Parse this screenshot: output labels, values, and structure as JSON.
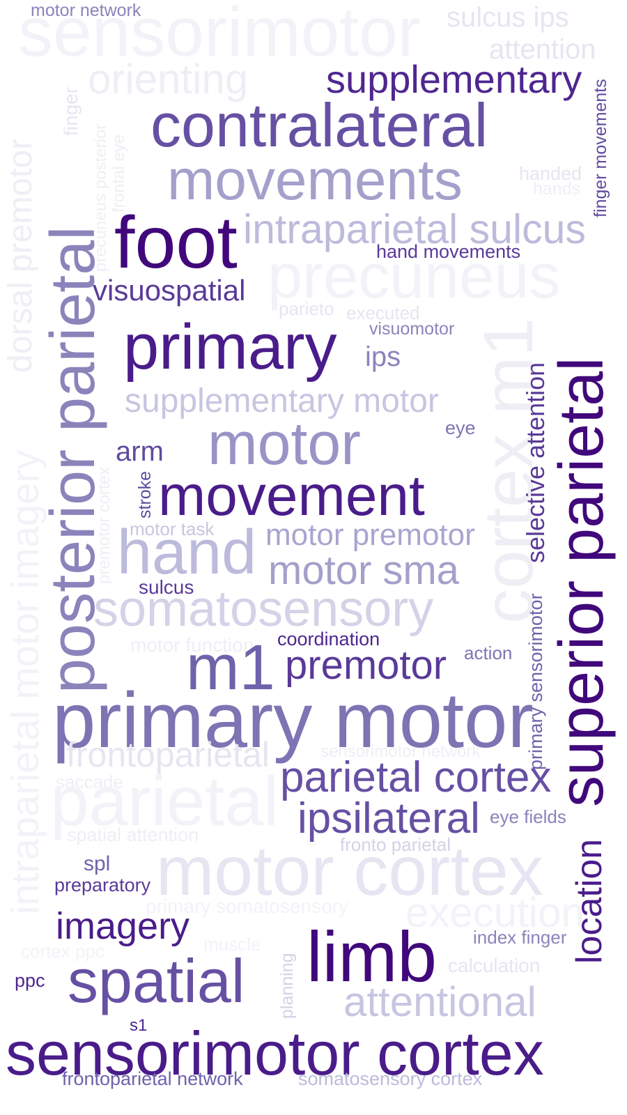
{
  "words": [
    {
      "text": "motor network",
      "color": "#8a84bb"
    },
    {
      "text": "sensorimotor",
      "color": "#f3f2f8"
    },
    {
      "text": "sulcus ips",
      "color": "#e6e5f1"
    },
    {
      "text": "attention",
      "color": "#e6e5f1"
    },
    {
      "text": "orienting",
      "color": "#efeef5"
    },
    {
      "text": "supplementary",
      "color": "#4f2690"
    },
    {
      "text": "contralateral",
      "color": "#6650a3"
    },
    {
      "text": "movements",
      "color": "#a3a0cb"
    },
    {
      "text": "handed",
      "color": "#e6e5f1"
    },
    {
      "text": "hands",
      "color": "#efeef5"
    },
    {
      "text": "foot",
      "color": "#41087b"
    },
    {
      "text": "intraparietal sulcus",
      "color": "#bcbbdb"
    },
    {
      "text": "hand movements",
      "color": "#5a3a98"
    },
    {
      "text": "precuneus",
      "color": "#f3f2f8"
    },
    {
      "text": "visuospatial",
      "color": "#5a3a98"
    },
    {
      "text": "parieto",
      "color": "#e6e5f1"
    },
    {
      "text": "executed",
      "color": "#e6e5f1"
    },
    {
      "text": "visuomotor",
      "color": "#8a84bb"
    },
    {
      "text": "primary",
      "color": "#4a1c8a"
    },
    {
      "text": "ips",
      "color": "#8a84bb"
    },
    {
      "text": "supplementary motor",
      "color": "#c7c6e1"
    },
    {
      "text": "eye",
      "color": "#7d74b3"
    },
    {
      "text": "arm",
      "color": "#5f4a9f"
    },
    {
      "text": "motor",
      "color": "#9994c6"
    },
    {
      "text": "movement",
      "color": "#4a1c8a"
    },
    {
      "text": "motor task",
      "color": "#c7c6e1"
    },
    {
      "text": "hand",
      "color": "#bcbbdb"
    },
    {
      "text": "motor premotor",
      "color": "#a8a5cf"
    },
    {
      "text": "motor sma",
      "color": "#a3a0cb"
    },
    {
      "text": "sulcus",
      "color": "#5a3a98"
    },
    {
      "text": "somatosensory",
      "color": "#d3d2e7"
    },
    {
      "text": "motor function",
      "color": "#efeef5"
    },
    {
      "text": "coordination",
      "color": "#4f2690"
    },
    {
      "text": "action",
      "color": "#7d74b3"
    },
    {
      "text": "m1",
      "color": "#6f62ab"
    },
    {
      "text": "premotor",
      "color": "#5a3a98"
    },
    {
      "text": "primary motor",
      "color": "#7d74b3"
    },
    {
      "text": "frontoparietal",
      "color": "#e6e5f1"
    },
    {
      "text": "sensorimotor network",
      "color": "#efeef5"
    },
    {
      "text": "saccade",
      "color": "#efeef5"
    },
    {
      "text": "parietal",
      "color": "#f3f2f8"
    },
    {
      "text": "parietal cortex",
      "color": "#6650a3"
    },
    {
      "text": "ipsilateral",
      "color": "#6650a3"
    },
    {
      "text": "eye fields",
      "color": "#8a84bb"
    },
    {
      "text": "spatial attention",
      "color": "#efeef5"
    },
    {
      "text": "fronto parietal",
      "color": "#d3d2e7"
    },
    {
      "text": "spl",
      "color": "#6f62ab"
    },
    {
      "text": "preparatory",
      "color": "#5a3a98"
    },
    {
      "text": "motor cortex",
      "color": "#e6e5f1"
    },
    {
      "text": "primary somatosensory",
      "color": "#f3f2f8"
    },
    {
      "text": "execution",
      "color": "#f3f2f8"
    },
    {
      "text": "imagery",
      "color": "#4a1c8a"
    },
    {
      "text": "index finger",
      "color": "#8a84bb"
    },
    {
      "text": "limb",
      "color": "#41087b"
    },
    {
      "text": "cortex ppc",
      "color": "#f3f2f8"
    },
    {
      "text": "muscle",
      "color": "#f3f2f8"
    },
    {
      "text": "calculation",
      "color": "#e6e5f1"
    },
    {
      "text": "ppc",
      "color": "#4f2690"
    },
    {
      "text": "spatial",
      "color": "#6650a3"
    },
    {
      "text": "attentional",
      "color": "#c7c6e1"
    },
    {
      "text": "s1",
      "color": "#4f2690"
    },
    {
      "text": "sensorimotor cortex",
      "color": "#4a1c8a"
    },
    {
      "text": "frontoparietal network",
      "color": "#6f62ab"
    },
    {
      "text": "somatosensory cortex",
      "color": "#bcbbdb"
    }
  ],
  "vertical_words": [
    {
      "text": "dorsal premotor",
      "color": "#efeef5"
    },
    {
      "text": "finger",
      "color": "#e6e5f1"
    },
    {
      "text": "precuneus posterior",
      "color": "#efeef5"
    },
    {
      "text": "frontal eye",
      "color": "#efeef5"
    },
    {
      "text": "posterior parietal",
      "color": "#8a84bb"
    },
    {
      "text": "premotor cortex",
      "color": "#efeef5"
    },
    {
      "text": "stroke",
      "color": "#5f4a9f"
    },
    {
      "text": "intraparietal motor imagery",
      "color": "#f3f2f8"
    },
    {
      "text": "finger movements",
      "color": "#5f4a9f"
    },
    {
      "text": "cortex m1",
      "color": "#efeef5"
    },
    {
      "text": "selective attention",
      "color": "#5a3a98"
    },
    {
      "text": "primary sensorimotor",
      "color": "#6f62ab"
    },
    {
      "text": "superior parietal",
      "color": "#41087b"
    },
    {
      "text": "location",
      "color": "#4a1c8a"
    },
    {
      "text": "planning",
      "color": "#d3d2e7"
    }
  ]
}
